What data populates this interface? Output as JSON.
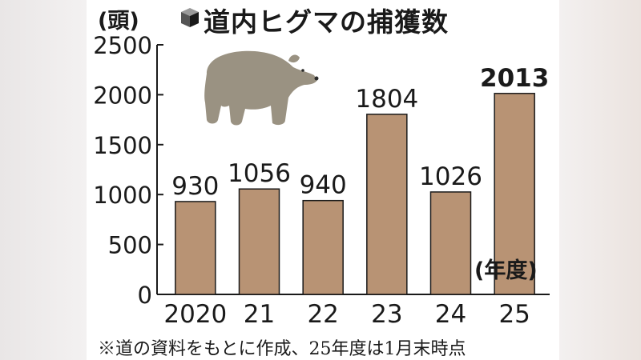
{
  "header": {
    "unit": "(頭)",
    "title": "道内ヒグマの捕獲数",
    "cube_icon": "cube-icon"
  },
  "fiscal_year_label": "(年度)",
  "footnote": "※道の資料をもとに作成、25年度は1月末時点",
  "decoration": {
    "illustration": "bear-illustration",
    "bear_color": "#9a9282"
  },
  "colors": {
    "bar_fill": "#b89374",
    "bar_stroke": "#1a1a1a",
    "text": "#1a1a1a"
  },
  "chart_data": {
    "type": "bar",
    "title": "道内ヒグマの捕獲数",
    "ylabel": "(頭)",
    "xlabel": "(年度)",
    "categories": [
      "2020",
      "21",
      "22",
      "23",
      "24",
      "25"
    ],
    "values": [
      930,
      1056,
      940,
      1804,
      1026,
      2013
    ],
    "data_labels": [
      "930",
      "1056",
      "940",
      "1804",
      "1026",
      "2013"
    ],
    "emphasized_label": "2013",
    "ylim": [
      0,
      2500
    ],
    "yticks": [
      "0",
      "500",
      "1000",
      "1500",
      "2000",
      "2500"
    ],
    "grid": false,
    "legend": "none"
  }
}
